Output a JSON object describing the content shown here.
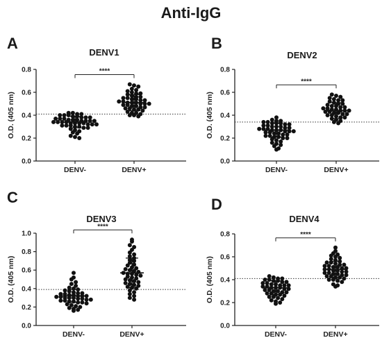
{
  "figure": {
    "title": "Anti-IgG"
  },
  "chart_data": [
    {
      "type": "scatter",
      "panel_label": "A",
      "title": "DENV1",
      "ylabel": "O.D. (405 nm)",
      "ylim": [
        0.0,
        0.8
      ],
      "yticks": [
        "0.0",
        "0.2",
        "0.4",
        "0.6",
        "0.8"
      ],
      "categories": [
        "DENV-",
        "DENV+"
      ],
      "cutoff": 0.41,
      "significance": "****",
      "series": [
        {
          "category": "DENV-",
          "mean": 0.34,
          "sd": 0.05,
          "values": [
            0.42,
            0.42,
            0.41,
            0.41,
            0.4,
            0.4,
            0.4,
            0.39,
            0.39,
            0.38,
            0.38,
            0.38,
            0.37,
            0.37,
            0.37,
            0.36,
            0.36,
            0.36,
            0.35,
            0.35,
            0.35,
            0.35,
            0.34,
            0.34,
            0.34,
            0.34,
            0.33,
            0.33,
            0.33,
            0.33,
            0.32,
            0.32,
            0.32,
            0.31,
            0.31,
            0.31,
            0.3,
            0.3,
            0.29,
            0.29,
            0.28,
            0.27,
            0.26,
            0.25,
            0.24,
            0.22,
            0.21,
            0.2
          ]
        },
        {
          "category": "DENV+",
          "mean": 0.51,
          "sd": 0.07,
          "values": [
            0.67,
            0.66,
            0.65,
            0.63,
            0.62,
            0.61,
            0.6,
            0.59,
            0.59,
            0.58,
            0.57,
            0.56,
            0.56,
            0.55,
            0.55,
            0.54,
            0.54,
            0.53,
            0.53,
            0.52,
            0.52,
            0.51,
            0.51,
            0.51,
            0.5,
            0.5,
            0.5,
            0.49,
            0.49,
            0.48,
            0.48,
            0.47,
            0.47,
            0.46,
            0.46,
            0.45,
            0.45,
            0.44,
            0.43,
            0.42,
            0.42,
            0.41,
            0.4,
            0.4,
            0.39
          ]
        }
      ]
    },
    {
      "type": "scatter",
      "panel_label": "B",
      "title": "DENV2",
      "ylabel": "O.D. (405 nm)",
      "ylim": [
        0.0,
        0.8
      ],
      "yticks": [
        "0.0",
        "0.2",
        "0.4",
        "0.6",
        "0.8"
      ],
      "categories": [
        "DENV-",
        "DENV+"
      ],
      "cutoff": 0.34,
      "significance": "****",
      "series": [
        {
          "category": "DENV-",
          "mean": 0.27,
          "sd": 0.06,
          "values": [
            0.38,
            0.36,
            0.35,
            0.35,
            0.34,
            0.34,
            0.33,
            0.33,
            0.33,
            0.32,
            0.32,
            0.31,
            0.31,
            0.3,
            0.3,
            0.3,
            0.29,
            0.29,
            0.28,
            0.28,
            0.28,
            0.27,
            0.27,
            0.27,
            0.26,
            0.26,
            0.26,
            0.25,
            0.25,
            0.24,
            0.24,
            0.23,
            0.23,
            0.22,
            0.22,
            0.21,
            0.21,
            0.2,
            0.2,
            0.19,
            0.18,
            0.17,
            0.16,
            0.15,
            0.14,
            0.13,
            0.11,
            0.1
          ]
        },
        {
          "category": "DENV+",
          "mean": 0.44,
          "sd": 0.07,
          "values": [
            0.58,
            0.57,
            0.56,
            0.55,
            0.54,
            0.53,
            0.53,
            0.52,
            0.51,
            0.5,
            0.5,
            0.49,
            0.48,
            0.48,
            0.47,
            0.47,
            0.46,
            0.46,
            0.45,
            0.45,
            0.44,
            0.44,
            0.44,
            0.43,
            0.43,
            0.42,
            0.42,
            0.41,
            0.41,
            0.4,
            0.4,
            0.39,
            0.38,
            0.38,
            0.37,
            0.36,
            0.35,
            0.34,
            0.33
          ]
        }
      ]
    },
    {
      "type": "scatter",
      "panel_label": "C",
      "title": "DENV3",
      "ylabel": "O.D. (405 nm)",
      "ylim": [
        0.0,
        1.0
      ],
      "yticks": [
        "0.0",
        "0.2",
        "0.4",
        "0.6",
        "0.8",
        "1.0"
      ],
      "categories": [
        "DENV-",
        "DENV+"
      ],
      "cutoff": 0.39,
      "significance": "****",
      "series": [
        {
          "category": "DENV-",
          "mean": 0.32,
          "sd": 0.07,
          "values": [
            0.57,
            0.52,
            0.5,
            0.47,
            0.45,
            0.43,
            0.41,
            0.4,
            0.39,
            0.38,
            0.37,
            0.36,
            0.35,
            0.35,
            0.34,
            0.34,
            0.33,
            0.33,
            0.32,
            0.32,
            0.32,
            0.31,
            0.31,
            0.3,
            0.3,
            0.3,
            0.29,
            0.29,
            0.28,
            0.28,
            0.27,
            0.27,
            0.26,
            0.26,
            0.25,
            0.25,
            0.24,
            0.23,
            0.22,
            0.21,
            0.2,
            0.19,
            0.18,
            0.17,
            0.16
          ]
        },
        {
          "category": "DENV+",
          "mean": 0.57,
          "sd": 0.16,
          "values": [
            0.93,
            0.91,
            0.87,
            0.85,
            0.82,
            0.79,
            0.77,
            0.75,
            0.73,
            0.71,
            0.7,
            0.68,
            0.66,
            0.65,
            0.63,
            0.62,
            0.61,
            0.6,
            0.59,
            0.58,
            0.57,
            0.56,
            0.56,
            0.55,
            0.54,
            0.53,
            0.52,
            0.51,
            0.5,
            0.49,
            0.48,
            0.47,
            0.46,
            0.45,
            0.44,
            0.43,
            0.42,
            0.41,
            0.4,
            0.38,
            0.36,
            0.34,
            0.32,
            0.3,
            0.28
          ]
        }
      ]
    },
    {
      "type": "scatter",
      "panel_label": "D",
      "title": "DENV4",
      "ylabel": "O.D. (405 nm)",
      "ylim": [
        0.0,
        0.8
      ],
      "yticks": [
        "0.0",
        "0.2",
        "0.4",
        "0.6",
        "0.8"
      ],
      "categories": [
        "DENV-",
        "DENV+"
      ],
      "cutoff": 0.41,
      "significance": "****",
      "series": [
        {
          "category": "DENV-",
          "mean": 0.33,
          "sd": 0.06,
          "values": [
            0.43,
            0.42,
            0.41,
            0.41,
            0.4,
            0.4,
            0.39,
            0.39,
            0.38,
            0.38,
            0.37,
            0.37,
            0.36,
            0.36,
            0.35,
            0.35,
            0.35,
            0.34,
            0.34,
            0.33,
            0.33,
            0.33,
            0.32,
            0.32,
            0.31,
            0.31,
            0.3,
            0.3,
            0.29,
            0.29,
            0.28,
            0.28,
            0.27,
            0.27,
            0.26,
            0.25,
            0.25,
            0.24,
            0.23,
            0.22,
            0.21,
            0.2,
            0.19
          ]
        },
        {
          "category": "DENV+",
          "mean": 0.49,
          "sd": 0.07,
          "values": [
            0.68,
            0.65,
            0.63,
            0.62,
            0.61,
            0.6,
            0.59,
            0.58,
            0.57,
            0.56,
            0.55,
            0.55,
            0.54,
            0.53,
            0.53,
            0.52,
            0.52,
            0.51,
            0.51,
            0.5,
            0.5,
            0.49,
            0.49,
            0.48,
            0.48,
            0.47,
            0.47,
            0.46,
            0.46,
            0.45,
            0.45,
            0.44,
            0.44,
            0.43,
            0.43,
            0.42,
            0.42,
            0.41,
            0.4,
            0.4,
            0.39,
            0.38,
            0.36,
            0.35,
            0.34
          ]
        }
      ]
    }
  ]
}
